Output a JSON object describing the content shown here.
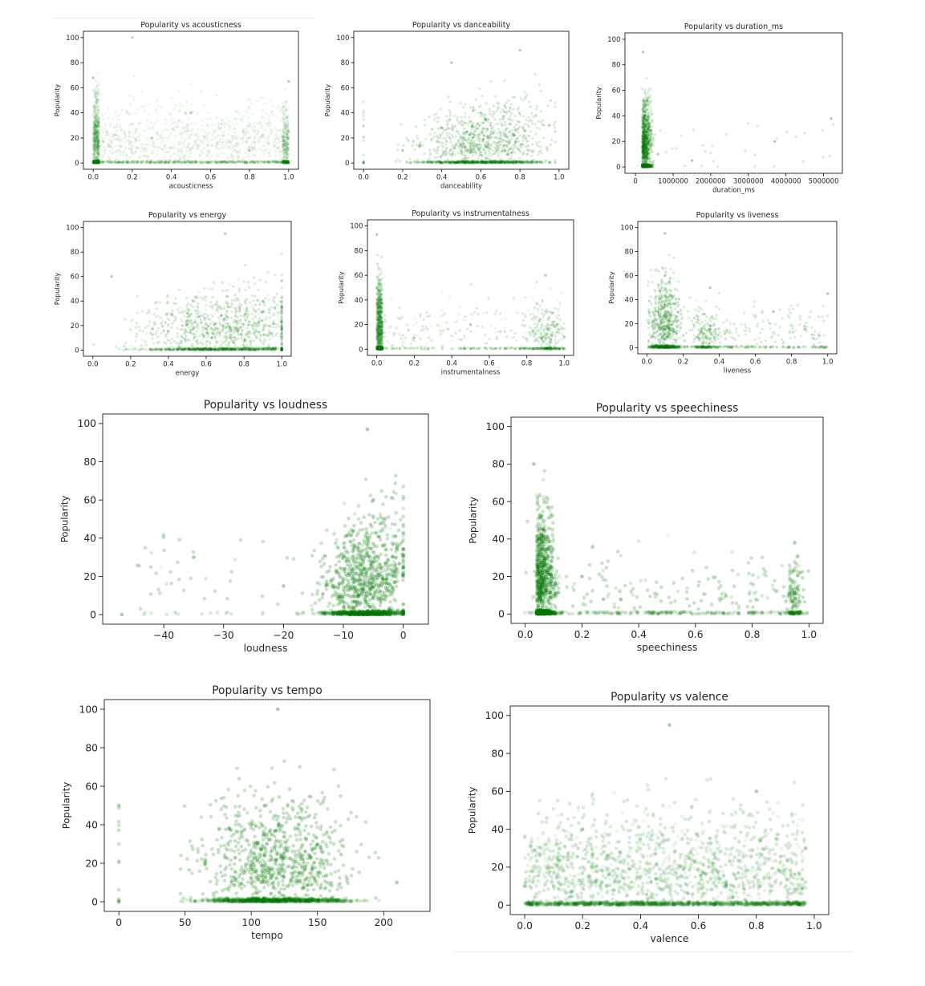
{
  "colors": {
    "marker": "#0a7a0a",
    "axis": "#000000",
    "text": "#262626",
    "background": "#ffffff"
  },
  "chart_data": [
    {
      "type": "scatter",
      "title": "Popularity vs acousticness",
      "xlabel": "acousticness",
      "ylabel": "Popularity",
      "xlim": [
        -0.05,
        1.05
      ],
      "ylim": [
        -5,
        105
      ],
      "xticks": [
        "0.0",
        "0.2",
        "0.4",
        "0.6",
        "0.8",
        "1.0"
      ],
      "xtick_values": [
        0,
        0.2,
        0.4,
        0.6,
        0.8,
        1.0
      ],
      "yticks": [
        "0",
        "20",
        "40",
        "60",
        "80",
        "100"
      ],
      "ytick_values": [
        0,
        20,
        40,
        60,
        80,
        100
      ],
      "points": [
        [
          0,
          68
        ],
        [
          0,
          0
        ],
        [
          0.5,
          40
        ],
        [
          1,
          0
        ],
        [
          1,
          65
        ],
        [
          0.2,
          100
        ],
        [
          0.3,
          20
        ],
        [
          0.8,
          10
        ]
      ],
      "grid": false,
      "legend": "none"
    },
    {
      "type": "scatter",
      "title": "Popularity vs danceability",
      "xlabel": "danceability",
      "ylabel": "Popularity",
      "xlim": [
        -0.05,
        1.05
      ],
      "ylim": [
        -5,
        105
      ],
      "xticks": [
        "0.0",
        "0.2",
        "0.4",
        "0.6",
        "0.8",
        "1.0"
      ],
      "xtick_values": [
        0,
        0.2,
        0.4,
        0.6,
        0.8,
        1.0
      ],
      "yticks": [
        "0",
        "20",
        "40",
        "60",
        "80",
        "100"
      ],
      "ytick_values": [
        0,
        20,
        40,
        60,
        80,
        100
      ],
      "points": [
        [
          0,
          0
        ],
        [
          0.6,
          40
        ],
        [
          0.45,
          80
        ],
        [
          0.8,
          90
        ],
        [
          0.2,
          10
        ],
        [
          0.95,
          30
        ]
      ],
      "grid": false,
      "legend": "none"
    },
    {
      "type": "scatter",
      "title": "Popularity vs duration_ms",
      "xlabel": "duration_ms",
      "ylabel": "Popularity",
      "xlim": [
        -280000,
        5500000
      ],
      "ylim": [
        -5,
        105
      ],
      "xticks": [
        "0",
        "1000000",
        "2000000",
        "3000000",
        "4000000",
        "5000000"
      ],
      "xtick_values": [
        0,
        1000000,
        2000000,
        3000000,
        4000000,
        5000000
      ],
      "yticks": [
        "0",
        "20",
        "40",
        "60",
        "80",
        "100"
      ],
      "ytick_values": [
        0,
        20,
        40,
        60,
        80,
        100
      ],
      "points": [
        [
          200000,
          90
        ],
        [
          250000,
          40
        ],
        [
          600000,
          10
        ],
        [
          1500000,
          5
        ],
        [
          3700000,
          20
        ],
        [
          5200000,
          38
        ]
      ],
      "grid": false,
      "legend": "none"
    },
    {
      "type": "scatter",
      "title": "Popularity vs energy",
      "xlabel": "energy",
      "ylabel": "Popularity",
      "xlim": [
        -0.05,
        1.05
      ],
      "ylim": [
        -5,
        105
      ],
      "xticks": [
        "0.0",
        "0.2",
        "0.4",
        "0.6",
        "0.8",
        "1.0"
      ],
      "xtick_values": [
        0,
        0.2,
        0.4,
        0.6,
        0.8,
        1.0
      ],
      "yticks": [
        "0",
        "20",
        "40",
        "60",
        "80",
        "100"
      ],
      "ytick_values": [
        0,
        20,
        40,
        60,
        80,
        100
      ],
      "points": [
        [
          0.7,
          95
        ],
        [
          0.9,
          40
        ],
        [
          0.1,
          60
        ],
        [
          1,
          0
        ],
        [
          0.5,
          30
        ]
      ],
      "grid": false,
      "legend": "none"
    },
    {
      "type": "scatter",
      "title": "Popularity vs instrumentalness",
      "xlabel": "instrumentalness",
      "ylabel": "Popularity",
      "xlim": [
        -0.05,
        1.05
      ],
      "ylim": [
        -5,
        105
      ],
      "xticks": [
        "0.0",
        "0.2",
        "0.4",
        "0.6",
        "0.8",
        "1.0"
      ],
      "xtick_values": [
        0,
        0.2,
        0.4,
        0.6,
        0.8,
        1.0
      ],
      "yticks": [
        "0",
        "20",
        "40",
        "60",
        "80",
        "100"
      ],
      "ytick_values": [
        0,
        20,
        40,
        60,
        80,
        100
      ],
      "points": [
        [
          0,
          93
        ],
        [
          0,
          50
        ],
        [
          0.9,
          60
        ],
        [
          0.5,
          20
        ],
        [
          1,
          10
        ]
      ],
      "grid": false,
      "legend": "none"
    },
    {
      "type": "scatter",
      "title": "Popularity vs liveness",
      "xlabel": "liveness",
      "ylabel": "Popularity",
      "xlim": [
        -0.05,
        1.05
      ],
      "ylim": [
        -5,
        105
      ],
      "xticks": [
        "0.0",
        "0.2",
        "0.4",
        "0.6",
        "0.8",
        "1.0"
      ],
      "xtick_values": [
        0,
        0.2,
        0.4,
        0.6,
        0.8,
        1.0
      ],
      "yticks": [
        "0",
        "20",
        "40",
        "60",
        "80",
        "100"
      ],
      "ytick_values": [
        0,
        20,
        40,
        60,
        80,
        100
      ],
      "points": [
        [
          0.1,
          95
        ],
        [
          0.1,
          60
        ],
        [
          0.35,
          50
        ],
        [
          0.7,
          30
        ],
        [
          1,
          45
        ]
      ],
      "grid": false,
      "legend": "none"
    },
    {
      "type": "scatter",
      "title": "Popularity vs loudness",
      "xlabel": "loudness",
      "ylabel": "Popularity",
      "xlim": [
        -50.2,
        4.2
      ],
      "ylim": [
        -5,
        105
      ],
      "xticks": [
        "−40",
        "−30",
        "−20",
        "−10",
        "0"
      ],
      "xtick_values": [
        -40,
        -30,
        -20,
        -10,
        0
      ],
      "yticks": [
        "0",
        "20",
        "40",
        "60",
        "80",
        "100"
      ],
      "ytick_values": [
        0,
        20,
        40,
        60,
        80,
        100
      ],
      "points": [
        [
          -6,
          97
        ],
        [
          -5,
          60
        ],
        [
          -10,
          30
        ],
        [
          -20,
          15
        ],
        [
          -35,
          30
        ],
        [
          -47,
          0
        ]
      ],
      "grid": false,
      "legend": "none"
    },
    {
      "type": "scatter",
      "title": "Popularity vs speechiness",
      "xlabel": "speechiness",
      "ylabel": "Popularity",
      "xlim": [
        -0.05,
        1.05
      ],
      "ylim": [
        -5,
        105
      ],
      "xticks": [
        "0.0",
        "0.2",
        "0.4",
        "0.6",
        "0.8",
        "1.0"
      ],
      "xtick_values": [
        0,
        0.2,
        0.4,
        0.6,
        0.8,
        1.0
      ],
      "yticks": [
        "0",
        "20",
        "40",
        "60",
        "80",
        "100"
      ],
      "ytick_values": [
        0,
        20,
        40,
        60,
        80,
        100
      ],
      "points": [
        [
          0.03,
          80
        ],
        [
          0.05,
          40
        ],
        [
          0.2,
          20
        ],
        [
          0.95,
          38
        ],
        [
          0.95,
          8
        ],
        [
          0.9,
          0
        ]
      ],
      "grid": false,
      "legend": "none"
    },
    {
      "type": "scatter",
      "title": "Popularity vs tempo",
      "xlabel": "tempo",
      "ylabel": "Popularity",
      "xlim": [
        -11,
        235
      ],
      "ylim": [
        -5,
        105
      ],
      "xticks": [
        "0",
        "50",
        "100",
        "150",
        "200"
      ],
      "xtick_values": [
        0,
        50,
        100,
        150,
        200
      ],
      "yticks": [
        "0",
        "20",
        "40",
        "60",
        "80",
        "100"
      ],
      "ytick_values": [
        0,
        20,
        40,
        60,
        80,
        100
      ],
      "points": [
        [
          0,
          0
        ],
        [
          0,
          50
        ],
        [
          120,
          100
        ],
        [
          100,
          40
        ],
        [
          150,
          30
        ],
        [
          210,
          10
        ]
      ],
      "grid": false,
      "legend": "none"
    },
    {
      "type": "scatter",
      "title": "Popularity vs valence",
      "xlabel": "valence",
      "ylabel": "Popularity",
      "xlim": [
        -0.05,
        1.05
      ],
      "ylim": [
        -5,
        105
      ],
      "xticks": [
        "0.0",
        "0.2",
        "0.4",
        "0.6",
        "0.8",
        "1.0"
      ],
      "xtick_values": [
        0,
        0.2,
        0.4,
        0.6,
        0.8,
        1.0
      ],
      "yticks": [
        "0",
        "20",
        "40",
        "60",
        "80",
        "100"
      ],
      "ytick_values": [
        0,
        20,
        40,
        60,
        80,
        100
      ],
      "points": [
        [
          0,
          10
        ],
        [
          0.5,
          95
        ],
        [
          0.2,
          40
        ],
        [
          0.8,
          60
        ],
        [
          0.97,
          30
        ]
      ],
      "grid": false,
      "legend": "none"
    }
  ]
}
